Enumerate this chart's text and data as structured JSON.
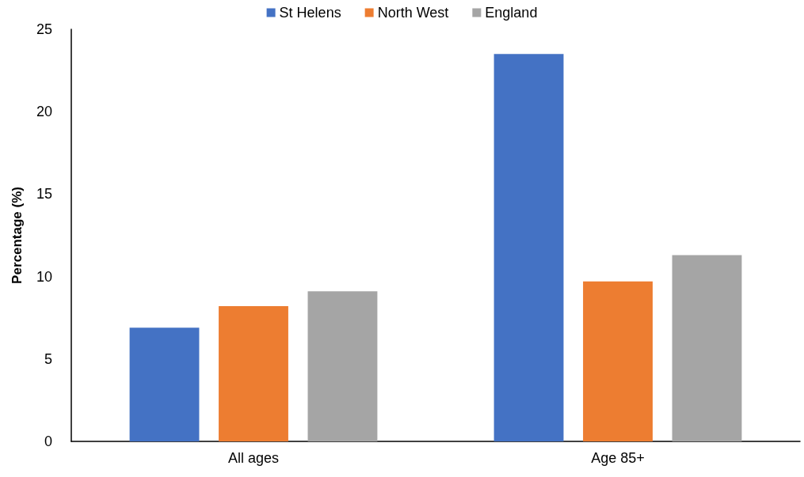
{
  "chart_data": {
    "type": "bar",
    "ylabel": "Percentage (%)",
    "categories": [
      "All ages",
      "Age 85+"
    ],
    "series": [
      {
        "name": "St Helens",
        "color": "#4472c4",
        "values": [
          6.9,
          23.5
        ]
      },
      {
        "name": "North West",
        "color": "#ed7d31",
        "values": [
          8.2,
          9.7
        ]
      },
      {
        "name": "England",
        "color": "#a5a5a5",
        "values": [
          9.1,
          11.3
        ]
      }
    ],
    "ylim": [
      0,
      25
    ],
    "yticks": [
      0,
      5,
      10,
      15,
      20,
      25
    ],
    "grid": false,
    "legend": "top"
  }
}
